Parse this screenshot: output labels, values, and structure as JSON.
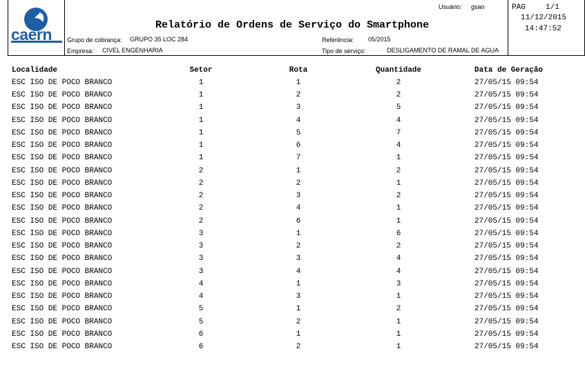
{
  "header": {
    "logo": "caern",
    "title": "Relatório de Ordens de Serviço do Smartphone",
    "user_label": "Usuário:",
    "user": "gsan",
    "page_label": "PAG",
    "page": "1/1",
    "date": "11/12/2015",
    "time": "14:47:52",
    "group_label": "Grupo de cobrança:",
    "group": "GRUPO 35 LOC 284",
    "reference_label": "Referência:",
    "reference": "05/2015",
    "company_label": "Empresa:",
    "company": "CIVEL ENGENHARIA",
    "service_label": "Tipo de serviço:",
    "service": "DESLIGAMENTO DE RAMAL DE AGUA"
  },
  "table": {
    "columns": [
      "Localidade",
      "Setor",
      "Rota",
      "Quantidade",
      "Data de Geração"
    ],
    "rows": [
      [
        "ESC ISO DE POCO BRANCO",
        1,
        1,
        2,
        "27/05/15 09:54"
      ],
      [
        "ESC ISO DE POCO BRANCO",
        1,
        2,
        2,
        "27/05/15 09:54"
      ],
      [
        "ESC ISO DE POCO BRANCO",
        1,
        3,
        5,
        "27/05/15 09:54"
      ],
      [
        "ESC ISO DE POCO BRANCO",
        1,
        4,
        4,
        "27/05/15 09:54"
      ],
      [
        "ESC ISO DE POCO BRANCO",
        1,
        5,
        7,
        "27/05/15 09:54"
      ],
      [
        "ESC ISO DE POCO BRANCO",
        1,
        6,
        4,
        "27/05/15 09:54"
      ],
      [
        "ESC ISO DE POCO BRANCO",
        1,
        7,
        1,
        "27/05/15 09:54"
      ],
      [
        "ESC ISO DE POCO BRANCO",
        2,
        1,
        2,
        "27/05/15 09:54"
      ],
      [
        "ESC ISO DE POCO BRANCO",
        2,
        2,
        1,
        "27/05/15 09:54"
      ],
      [
        "ESC ISO DE POCO BRANCO",
        2,
        3,
        2,
        "27/05/15 09:54"
      ],
      [
        "ESC ISO DE POCO BRANCO",
        2,
        4,
        1,
        "27/05/15 09:54"
      ],
      [
        "ESC ISO DE POCO BRANCO",
        2,
        6,
        1,
        "27/05/15 09:54"
      ],
      [
        "ESC ISO DE POCO BRANCO",
        3,
        1,
        6,
        "27/05/15 09:54"
      ],
      [
        "ESC ISO DE POCO BRANCO",
        3,
        2,
        2,
        "27/05/15 09:54"
      ],
      [
        "ESC ISO DE POCO BRANCO",
        3,
        3,
        4,
        "27/05/15 09:54"
      ],
      [
        "ESC ISO DE POCO BRANCO",
        3,
        4,
        4,
        "27/05/15 09:54"
      ],
      [
        "ESC ISO DE POCO BRANCO",
        4,
        1,
        3,
        "27/05/15 09:54"
      ],
      [
        "ESC ISO DE POCO BRANCO",
        4,
        3,
        1,
        "27/05/15 09:54"
      ],
      [
        "ESC ISO DE POCO BRANCO",
        5,
        1,
        2,
        "27/05/15 09:54"
      ],
      [
        "ESC ISO DE POCO BRANCO",
        5,
        2,
        1,
        "27/05/15 09:54"
      ],
      [
        "ESC ISO DE POCO BRANCO",
        6,
        1,
        1,
        "27/05/15 09:54"
      ],
      [
        "ESC ISO DE POCO BRANCO",
        6,
        2,
        1,
        "27/05/15 09:54"
      ]
    ]
  }
}
